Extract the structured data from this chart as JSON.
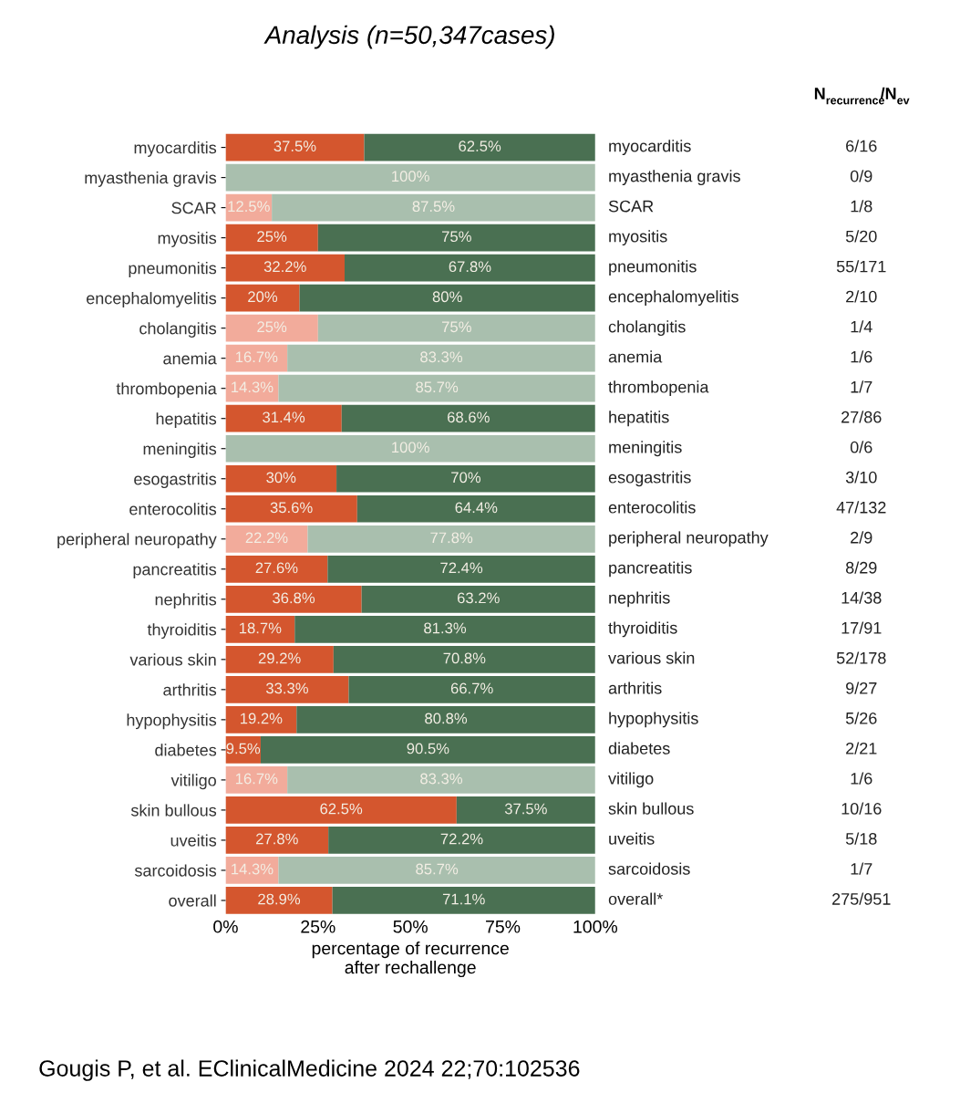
{
  "chart_data": {
    "type": "bar",
    "orientation": "horizontal",
    "stacked": true,
    "title": "Analysis (n=50,347cases)",
    "xlabel": "percentage of recurrence\nafter rechallenge",
    "categories": [
      "myocarditis",
      "myasthenia gravis",
      "SCAR",
      "myositis",
      "pneumonitis",
      "encephalomyelitis",
      "cholangitis",
      "anemia",
      "thrombopenia",
      "hepatitis",
      "meningitis",
      "esogastritis",
      "enterocolitis",
      "peripheral neuropathy",
      "pancreatitis",
      "nephritis",
      "thyroiditis",
      "various skin",
      "arthritis",
      "hypophysitis",
      "diabetes",
      "vitiligo",
      "skin bullous",
      "uveitis",
      "sarcoidosis",
      "overall"
    ],
    "y2_categories": [
      "myocarditis",
      "myasthenia gravis",
      "SCAR",
      "myositis",
      "pneumonitis",
      "encephalomyelitis",
      "cholangitis",
      "anemia",
      "thrombopenia",
      "hepatitis",
      "meningitis",
      "esogastritis",
      "enterocolitis",
      "peripheral neuropathy",
      "pancreatitis",
      "nephritis",
      "thyroiditis",
      "various skin",
      "arthritis",
      "hypophysitis",
      "diabetes",
      "vitiligo",
      "skin bullous",
      "uveitis",
      "sarcoidosis",
      "overall*"
    ],
    "series": [
      {
        "values": [
          37.5,
          0,
          12.5,
          25,
          32.2,
          20,
          25,
          16.7,
          14.3,
          31.4,
          0,
          30,
          35.6,
          22.2,
          27.6,
          36.8,
          18.7,
          29.2,
          33.3,
          19.2,
          9.5,
          16.7,
          62.5,
          27.8,
          14.3,
          28.9
        ],
        "value_labels": [
          "37.5%",
          null,
          "12.5%",
          "25%",
          "32.2%",
          "20%",
          "25%",
          "16.7%",
          "14.3%",
          "31.4%",
          null,
          "30%",
          "35.6%",
          "22.2%",
          "27.6%",
          "36.8%",
          "18.7%",
          "29.2%",
          "33.3%",
          "19.2%",
          "9.5%",
          "16.7%",
          "62.5%",
          "27.8%",
          "14.3%",
          "28.9%"
        ],
        "colors": [
          "#d4562e",
          "#f2ab9b",
          "#f2ab9b",
          "#d4562e",
          "#d4562e",
          "#d4562e",
          "#f2ab9b",
          "#f2ab9b",
          "#f2ab9b",
          "#d4562e",
          "#f2ab9b",
          "#d4562e",
          "#d4562e",
          "#f2ab9b",
          "#d4562e",
          "#d4562e",
          "#d4562e",
          "#d4562e",
          "#d4562e",
          "#d4562e",
          "#d4562e",
          "#f2ab9b",
          "#d4562e",
          "#d4562e",
          "#f2ab9b",
          "#d4562e"
        ]
      },
      {
        "values": [
          62.5,
          100,
          87.5,
          75,
          67.8,
          80,
          75,
          83.3,
          85.7,
          68.6,
          100,
          70,
          64.4,
          77.8,
          72.4,
          63.2,
          81.3,
          70.8,
          66.7,
          80.8,
          90.5,
          83.3,
          37.5,
          72.2,
          85.7,
          71.1
        ],
        "value_labels": [
          "62.5%",
          "100%",
          "87.5%",
          "75%",
          "67.8%",
          "80%",
          "75%",
          "83.3%",
          "85.7%",
          "68.6%",
          "100%",
          "70%",
          "64.4%",
          "77.8%",
          "72.4%",
          "63.2%",
          "81.3%",
          "70.8%",
          "66.7%",
          "80.8%",
          "90.5%",
          "83.3%",
          "37.5%",
          "72.2%",
          "85.7%",
          "71.1%"
        ],
        "colors": [
          "#4a7052",
          "#a9bfae",
          "#a9bfae",
          "#4a7052",
          "#4a7052",
          "#4a7052",
          "#a9bfae",
          "#a9bfae",
          "#a9bfae",
          "#4a7052",
          "#a9bfae",
          "#4a7052",
          "#4a7052",
          "#a9bfae",
          "#4a7052",
          "#4a7052",
          "#4a7052",
          "#4a7052",
          "#4a7052",
          "#4a7052",
          "#4a7052",
          "#a9bfae",
          "#4a7052",
          "#4a7052",
          "#a9bfae",
          "#4a7052"
        ]
      }
    ],
    "xlim": [
      0,
      100
    ],
    "xticks": [
      {
        "value": 0,
        "label": "0%"
      },
      {
        "value": 25,
        "label": "25%"
      },
      {
        "value": 50,
        "label": "50%"
      },
      {
        "value": 75,
        "label": "75%"
      },
      {
        "value": 100,
        "label": "100%"
      }
    ],
    "annotations": [
      "N$_{recurrence}$/N$_{ev}$",
      "6/16",
      "0/9",
      "1/8",
      "5/20",
      "55/171",
      "2/10",
      "1/4",
      "1/6",
      "1/7",
      "27/86",
      "0/6",
      "3/10",
      "47/132",
      "2/9",
      "8/29",
      "14/38",
      "17/91",
      "52/178",
      "9/27",
      "5/26",
      "2/21",
      "1/6",
      "10/16",
      "5/18",
      "1/7",
      "275/951",
      "Gougis P, et al. EClinicalMedicine 2024 22;70:102536"
    ],
    "grid": false,
    "legend": false
  }
}
